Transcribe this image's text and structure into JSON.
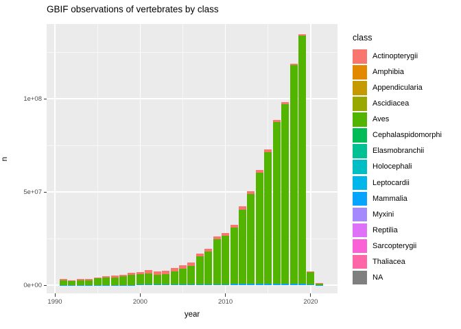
{
  "title": "GBIF observations of vertebrates by class",
  "axes": {
    "x": {
      "title": "year",
      "ticks": [
        {
          "label": "1990",
          "value": 1990
        },
        {
          "label": "2000",
          "value": 2000
        },
        {
          "label": "2010",
          "value": 2010
        },
        {
          "label": "2020",
          "value": 2020
        }
      ]
    },
    "y": {
      "title": "n",
      "ticks": [
        {
          "label": "0e+00",
          "value": 0
        },
        {
          "label": "5e+07",
          "value": 50000000
        },
        {
          "label": "1e+08",
          "value": 100000000
        }
      ]
    }
  },
  "legend": {
    "title": "class",
    "items": [
      {
        "label": "Actinopterygii",
        "color": "#F8766D"
      },
      {
        "label": "Amphibia",
        "color": "#E38900"
      },
      {
        "label": "Appendicularia",
        "color": "#C49A00"
      },
      {
        "label": "Ascidiacea",
        "color": "#99A800"
      },
      {
        "label": "Aves",
        "color": "#53B400"
      },
      {
        "label": "Cephalaspidomorphi",
        "color": "#00BC56"
      },
      {
        "label": "Elasmobranchii",
        "color": "#00C094"
      },
      {
        "label": "Holocephali",
        "color": "#00BFC4"
      },
      {
        "label": "Leptocardii",
        "color": "#00B6EB"
      },
      {
        "label": "Mammalia",
        "color": "#06A4FF"
      },
      {
        "label": "Myxini",
        "color": "#A58AFF"
      },
      {
        "label": "Reptilia",
        "color": "#DF70F8"
      },
      {
        "label": "Sarcopterygii",
        "color": "#FB61D7"
      },
      {
        "label": "Thaliacea",
        "color": "#FF66A8"
      },
      {
        "label": "NA",
        "color": "#7F7F7F"
      }
    ]
  },
  "chart_data": {
    "type": "bar",
    "stacked": true,
    "stack_order": "bottom-to-top",
    "title": "GBIF observations of vertebrates by class",
    "xlabel": "year",
    "ylabel": "n",
    "xlim": [
      1989,
      2022.5
    ],
    "ylim": [
      0,
      140000000
    ],
    "grid": "white major and minor on grey panel",
    "legend_position": "right",
    "panel_background": "#EBEBEB",
    "x": [
      1991,
      1992,
      1993,
      1994,
      1995,
      1996,
      1997,
      1998,
      1999,
      2000,
      2001,
      2002,
      2003,
      2004,
      2005,
      2006,
      2007,
      2008,
      2009,
      2010,
      2011,
      2012,
      2013,
      2014,
      2015,
      2016,
      2017,
      2018,
      2019,
      2020,
      2021
    ],
    "series": [
      {
        "name": "Mammalia",
        "color": "#06A4FF",
        "values": [
          100000,
          100000,
          100000,
          100000,
          100000,
          100000,
          100000,
          150000,
          150000,
          300000,
          300000,
          300000,
          300000,
          300000,
          300000,
          300000,
          300000,
          300000,
          500000,
          500000,
          700000,
          700000,
          700000,
          700000,
          700000,
          700000,
          700000,
          700000,
          700000,
          400000,
          50000
        ]
      },
      {
        "name": "Aves",
        "color": "#53B400",
        "values": [
          2500000,
          2050000,
          2600000,
          2400000,
          3550000,
          4000000,
          4100000,
          4450000,
          5350000,
          5500000,
          5800000,
          5300000,
          5700000,
          7200000,
          8700000,
          10100000,
          15000000,
          17800000,
          24100000,
          25900000,
          30000000,
          39800000,
          48200000,
          59600000,
          70800000,
          86800000,
          96400000,
          117300000,
          133200000,
          6900000,
          1000000
        ]
      },
      {
        "name": "Actinopterygii",
        "color": "#F8766D",
        "values": [
          700000,
          550000,
          700000,
          700000,
          550000,
          700000,
          900000,
          900000,
          1100000,
          1200000,
          2000000,
          1800000,
          1700000,
          1700000,
          1600000,
          1600000,
          1600000,
          1500000,
          1500000,
          1500000,
          1500000,
          1800000,
          1500000,
          1500000,
          1300000,
          1100000,
          1100000,
          700000,
          700000,
          200000,
          50000
        ]
      }
    ]
  }
}
